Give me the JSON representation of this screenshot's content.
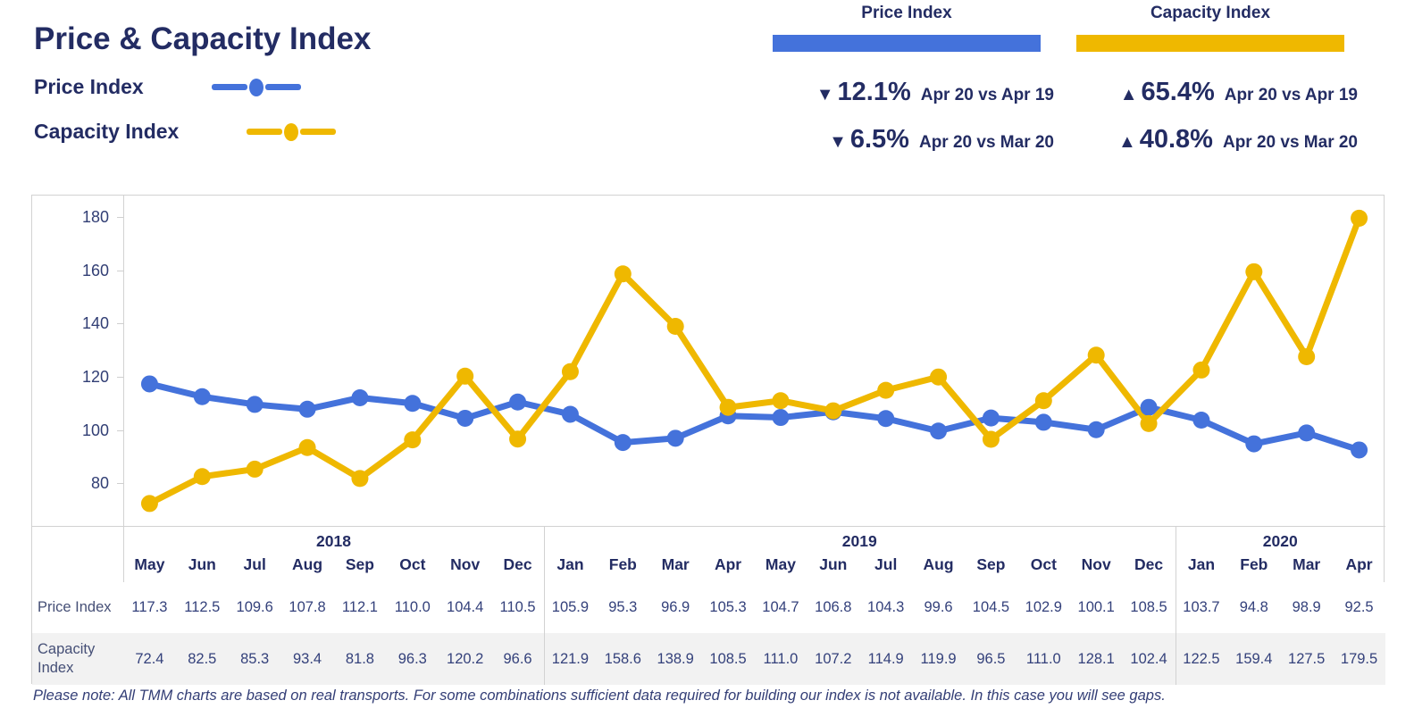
{
  "header": {
    "title": "Price & Capacity Index",
    "legend": [
      {
        "label": "Price Index",
        "color": "#4472DB"
      },
      {
        "label": "Capacity Index",
        "color": "#EFB800"
      }
    ]
  },
  "stats": {
    "price": {
      "title": "Price Index",
      "color": "#4472DB",
      "rows": [
        {
          "arrow": "▼",
          "direction": "down",
          "value": "12.1%",
          "period": "Apr 20 vs Apr 19"
        },
        {
          "arrow": "▼",
          "direction": "down",
          "value": "6.5%",
          "period": "Apr 20 vs Mar 20"
        }
      ]
    },
    "capacity": {
      "title": "Capacity Index",
      "color": "#EFB800",
      "rows": [
        {
          "arrow": "▲",
          "direction": "up",
          "value": "65.4%",
          "period": "Apr 20 vs Apr 19"
        },
        {
          "arrow": "▲",
          "direction": "up",
          "value": "40.8%",
          "period": "Apr 20 vs Mar 20"
        }
      ]
    }
  },
  "chart_data": {
    "type": "line",
    "title": "Price & Capacity Index",
    "ylim": [
      65,
      188
    ],
    "yticks": [
      80,
      100,
      120,
      140,
      160,
      180
    ],
    "grid": false,
    "legend_position": "top-left",
    "groups": [
      {
        "year": "2018",
        "months": [
          "May",
          "Jun",
          "Jul",
          "Aug",
          "Sep",
          "Oct",
          "Nov",
          "Dec"
        ]
      },
      {
        "year": "2019",
        "months": [
          "Jan",
          "Feb",
          "Mar",
          "Apr",
          "May",
          "Jun",
          "Jul",
          "Aug",
          "Sep",
          "Oct",
          "Nov",
          "Dec"
        ]
      },
      {
        "year": "2020",
        "months": [
          "Jan",
          "Feb",
          "Mar",
          "Apr"
        ]
      }
    ],
    "series": [
      {
        "name": "Price Index",
        "color": "#4472DB",
        "values": [
          117.3,
          112.5,
          109.6,
          107.8,
          112.1,
          110.0,
          104.4,
          110.5,
          105.9,
          95.3,
          96.9,
          105.3,
          104.7,
          106.8,
          104.3,
          99.6,
          104.5,
          102.9,
          100.1,
          108.5,
          103.7,
          94.8,
          98.9,
          92.5
        ]
      },
      {
        "name": "Capacity Index",
        "color": "#EFB800",
        "values": [
          72.4,
          82.5,
          85.3,
          93.4,
          81.8,
          96.3,
          120.2,
          96.6,
          121.9,
          158.6,
          138.9,
          108.5,
          111.0,
          107.2,
          114.9,
          119.9,
          96.5,
          111.0,
          128.1,
          102.4,
          122.5,
          159.4,
          127.5,
          179.5
        ]
      }
    ]
  },
  "table": {
    "row_labels": [
      "Price Index",
      "Capacity Index"
    ]
  },
  "footer": {
    "note": "Please note: All TMM charts are based on real transports. For some combinations sufficient data required for building our index is not available. In this case you will see gaps."
  }
}
